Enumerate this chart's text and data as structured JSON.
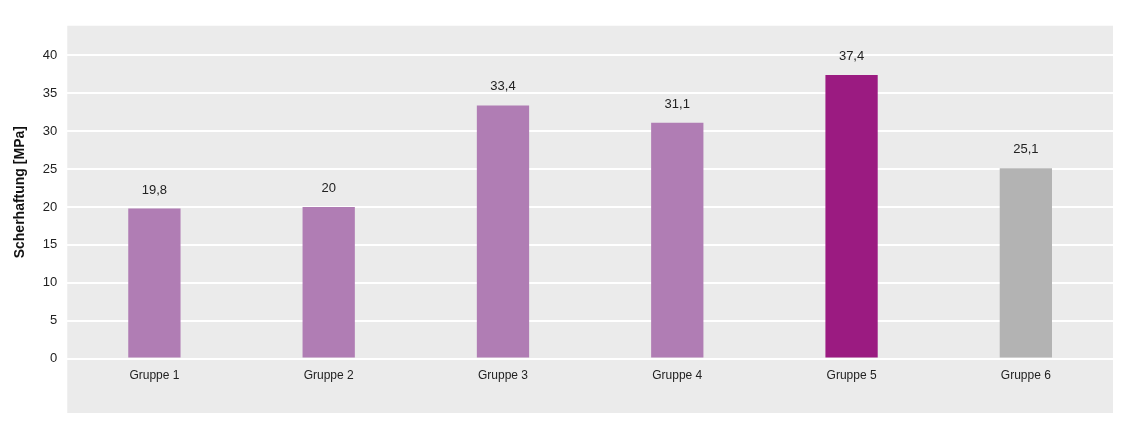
{
  "chart_data": {
    "type": "bar",
    "ylabel": "Scherhaftung [MPa]",
    "categories": [
      "Gruppe 1",
      "Gruppe 2",
      "Gruppe 3",
      "Gruppe 4",
      "Gruppe 5",
      "Gruppe 6"
    ],
    "values": [
      19.8,
      20,
      33.4,
      31.1,
      37.4,
      25.1
    ],
    "colors": [
      "#b07db4",
      "#b07db4",
      "#b07db4",
      "#b07db4",
      "#9b1b81",
      "#b3b3b3"
    ],
    "value_labels": [
      "19,8",
      "20",
      "33,4",
      "31,1",
      "37,4",
      "25,1"
    ],
    "ylim": [
      0,
      43.9
    ],
    "yticks": [
      0,
      5,
      10,
      15,
      20,
      25,
      30,
      35,
      40
    ],
    "grid": "y"
  }
}
